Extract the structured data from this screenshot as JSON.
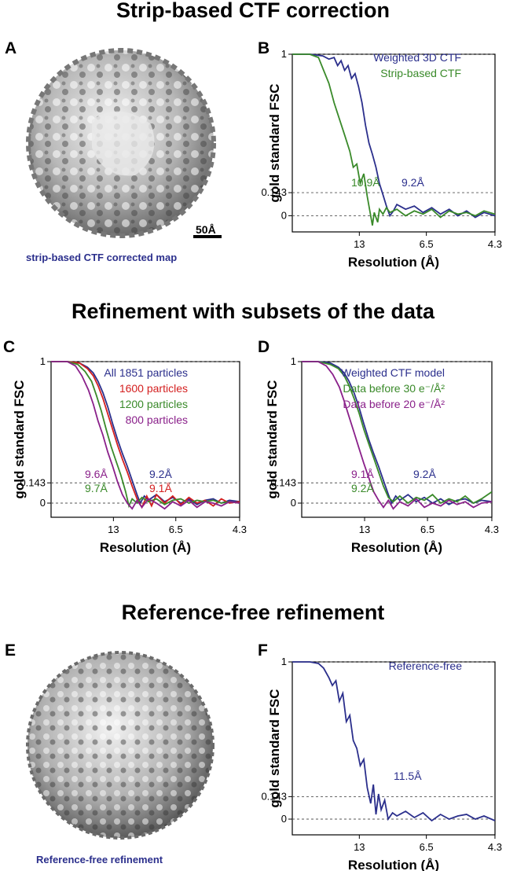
{
  "titles": {
    "t1": "Strip-based CTF correction",
    "t2": "Refinement with subsets of the data",
    "t3": "Reference-free refinement"
  },
  "panels": {
    "A": {
      "letter": "A",
      "caption": "strip-based CTF corrected map",
      "scalebar": "50Å"
    },
    "B": {
      "letter": "B"
    },
    "C": {
      "letter": "C"
    },
    "D": {
      "letter": "D"
    },
    "E": {
      "letter": "E",
      "caption": "Reference-free refinement"
    },
    "F": {
      "letter": "F"
    }
  },
  "colors": {
    "blue": "#2b2f8c",
    "green": "#3a8a2a",
    "red": "#d42020",
    "purple": "#8a208a",
    "caption_blue": "#2b2f8c"
  },
  "chart_data": [
    {
      "id": "B",
      "type": "line",
      "xlabel": "Resolution (Å)",
      "ylabel": "gold standard FSC",
      "xticks": [
        "13",
        "6.5",
        "4.3"
      ],
      "yticks": [
        "1",
        "0.143",
        "0"
      ],
      "ylim": [
        -0.1,
        1.0
      ],
      "xlim_spatial_freq": [
        0,
        0.2326
      ],
      "series": [
        {
          "name": "Weighted 3D CTF",
          "color": "blue",
          "x": [
            0.0,
            0.02,
            0.035,
            0.042,
            0.048,
            0.052,
            0.056,
            0.06,
            0.064,
            0.068,
            0.072,
            0.076,
            0.08,
            0.084,
            0.088,
            0.092,
            0.096,
            0.1,
            0.104,
            0.108,
            0.112,
            0.116,
            0.12,
            0.13,
            0.14,
            0.15,
            0.16,
            0.17,
            0.18,
            0.19,
            0.2,
            0.21,
            0.22,
            0.2326
          ],
          "y": [
            1.0,
            1.0,
            0.99,
            0.97,
            0.98,
            0.93,
            0.96,
            0.9,
            0.93,
            0.85,
            0.88,
            0.8,
            0.7,
            0.56,
            0.45,
            0.38,
            0.3,
            0.2,
            0.13,
            0.06,
            0.0,
            0.03,
            0.07,
            0.04,
            0.06,
            0.02,
            0.05,
            0.01,
            0.04,
            0.0,
            0.03,
            -0.01,
            0.02,
            0.0
          ]
        },
        {
          "name": "Strip-based CTF",
          "color": "green",
          "x": [
            0.0,
            0.02,
            0.03,
            0.036,
            0.042,
            0.048,
            0.054,
            0.06,
            0.066,
            0.07,
            0.074,
            0.078,
            0.082,
            0.086,
            0.09,
            0.092,
            0.094,
            0.098,
            0.1,
            0.104,
            0.108,
            0.112,
            0.12,
            0.13,
            0.14,
            0.15,
            0.16,
            0.17,
            0.18,
            0.19,
            0.2,
            0.21,
            0.22,
            0.2326
          ],
          "y": [
            1.0,
            1.0,
            0.98,
            0.9,
            0.82,
            0.7,
            0.6,
            0.5,
            0.4,
            0.3,
            0.32,
            0.2,
            0.26,
            0.12,
            0.0,
            -0.06,
            0.02,
            -0.04,
            0.04,
            0.01,
            0.05,
            0.02,
            0.04,
            0.0,
            0.03,
            0.01,
            0.04,
            -0.01,
            0.03,
            0.01,
            0.02,
            0.0,
            0.03,
            0.01
          ]
        }
      ],
      "annotations": [
        {
          "text": "10.9Å",
          "color": "green"
        },
        {
          "text": "9.2Å",
          "color": "blue"
        }
      ],
      "legend": "top-right"
    },
    {
      "id": "C",
      "type": "line",
      "xlabel": "Resolution (Å)",
      "ylabel": "gold standard FSC",
      "xticks": [
        "13",
        "6.5",
        "4.3"
      ],
      "yticks": [
        "1",
        "0.143",
        "0"
      ],
      "ylim": [
        -0.1,
        1.0
      ],
      "xlim_spatial_freq": [
        0,
        0.2326
      ],
      "series": [
        {
          "name": "All 1851 particles",
          "color": "blue",
          "x": [
            0.0,
            0.02,
            0.035,
            0.045,
            0.052,
            0.058,
            0.064,
            0.07,
            0.076,
            0.082,
            0.088,
            0.094,
            0.1,
            0.106,
            0.11,
            0.115,
            0.12,
            0.13,
            0.14,
            0.15,
            0.16,
            0.17,
            0.18,
            0.19,
            0.2,
            0.21,
            0.22,
            0.2326
          ],
          "y": [
            1.0,
            1.0,
            0.99,
            0.96,
            0.92,
            0.86,
            0.78,
            0.68,
            0.56,
            0.45,
            0.35,
            0.26,
            0.16,
            0.06,
            0.0,
            0.05,
            0.02,
            0.06,
            0.01,
            0.04,
            0.0,
            0.03,
            -0.01,
            0.02,
            0.03,
            0.0,
            0.02,
            0.01
          ]
        },
        {
          "name": "1600 particles",
          "color": "red",
          "x": [
            0.0,
            0.02,
            0.035,
            0.045,
            0.052,
            0.058,
            0.064,
            0.07,
            0.076,
            0.082,
            0.088,
            0.094,
            0.1,
            0.106,
            0.112,
            0.118,
            0.124,
            0.13,
            0.14,
            0.15,
            0.16,
            0.17,
            0.18,
            0.19,
            0.2,
            0.21,
            0.22,
            0.2326
          ],
          "y": [
            1.0,
            1.0,
            0.99,
            0.95,
            0.9,
            0.83,
            0.74,
            0.63,
            0.52,
            0.41,
            0.31,
            0.22,
            0.12,
            0.03,
            -0.03,
            0.05,
            -0.02,
            0.06,
            0.0,
            0.05,
            -0.01,
            0.04,
            0.0,
            0.02,
            -0.02,
            0.03,
            0.0,
            0.01
          ]
        },
        {
          "name": "1200 particles",
          "color": "green",
          "x": [
            0.0,
            0.02,
            0.033,
            0.042,
            0.05,
            0.056,
            0.062,
            0.068,
            0.074,
            0.08,
            0.086,
            0.092,
            0.096,
            0.1,
            0.106,
            0.112,
            0.12,
            0.13,
            0.14,
            0.15,
            0.16,
            0.17,
            0.18,
            0.19,
            0.2,
            0.21,
            0.22,
            0.2326
          ],
          "y": [
            1.0,
            1.0,
            0.98,
            0.93,
            0.86,
            0.76,
            0.65,
            0.52,
            0.4,
            0.3,
            0.2,
            0.08,
            -0.02,
            0.03,
            0.0,
            0.04,
            0.01,
            0.03,
            -0.01,
            0.02,
            0.03,
            0.0,
            0.02,
            0.01,
            0.02,
            0.0,
            0.01,
            0.0
          ]
        },
        {
          "name": "800 particles",
          "color": "purple",
          "x": [
            0.0,
            0.02,
            0.03,
            0.038,
            0.046,
            0.052,
            0.058,
            0.064,
            0.07,
            0.076,
            0.082,
            0.088,
            0.094,
            0.1,
            0.106,
            0.112,
            0.12,
            0.13,
            0.14,
            0.15,
            0.16,
            0.17,
            0.18,
            0.19,
            0.2,
            0.21,
            0.22,
            0.2326
          ],
          "y": [
            1.0,
            1.0,
            0.97,
            0.9,
            0.8,
            0.7,
            0.58,
            0.48,
            0.36,
            0.26,
            0.15,
            0.06,
            0.0,
            -0.04,
            0.02,
            -0.03,
            0.03,
            0.0,
            -0.04,
            0.01,
            -0.02,
            0.02,
            -0.03,
            0.01,
            0.0,
            -0.02,
            0.01,
            0.0
          ]
        }
      ],
      "annotations": [
        {
          "text": "9.6Å",
          "color": "purple"
        },
        {
          "text": "9.7Å",
          "color": "green"
        },
        {
          "text": "9.2Å",
          "color": "blue"
        },
        {
          "text": "9.1Å",
          "color": "red"
        }
      ],
      "legend": "top-right"
    },
    {
      "id": "D",
      "type": "line",
      "xlabel": "Resolution (Å)",
      "ylabel": "gold standard FSC",
      "xticks": [
        "13",
        "6.5",
        "4.3"
      ],
      "yticks": [
        "1",
        "0.143",
        "0"
      ],
      "ylim": [
        -0.1,
        1.0
      ],
      "xlim_spatial_freq": [
        0,
        0.2326
      ],
      "series": [
        {
          "name": "Weighted CTF model",
          "color": "blue",
          "x": [
            0.0,
            0.02,
            0.035,
            0.045,
            0.052,
            0.058,
            0.064,
            0.07,
            0.076,
            0.082,
            0.088,
            0.094,
            0.1,
            0.106,
            0.11,
            0.115,
            0.12,
            0.13,
            0.14,
            0.15,
            0.16,
            0.17,
            0.18,
            0.19,
            0.2,
            0.21,
            0.22,
            0.2326
          ],
          "y": [
            1.0,
            1.0,
            0.99,
            0.96,
            0.92,
            0.86,
            0.78,
            0.68,
            0.56,
            0.45,
            0.35,
            0.26,
            0.16,
            0.06,
            0.0,
            0.05,
            0.02,
            0.06,
            0.01,
            0.04,
            0.0,
            0.03,
            -0.01,
            0.02,
            0.03,
            0.0,
            0.02,
            0.01
          ]
        },
        {
          "name": "Data before 30 e⁻/Å²",
          "color": "green",
          "x": [
            0.0,
            0.02,
            0.035,
            0.045,
            0.052,
            0.058,
            0.064,
            0.07,
            0.076,
            0.082,
            0.088,
            0.094,
            0.1,
            0.106,
            0.112,
            0.12,
            0.13,
            0.14,
            0.15,
            0.16,
            0.17,
            0.18,
            0.19,
            0.2,
            0.21,
            0.22,
            0.2326
          ],
          "y": [
            1.0,
            1.0,
            0.98,
            0.95,
            0.9,
            0.83,
            0.74,
            0.64,
            0.52,
            0.42,
            0.32,
            0.22,
            0.12,
            0.04,
            0.01,
            0.05,
            0.0,
            0.04,
            0.02,
            0.06,
            0.0,
            0.03,
            0.01,
            0.05,
            0.0,
            0.03,
            0.08
          ]
        },
        {
          "name": "Data before 20 e⁻/Å²",
          "color": "purple",
          "x": [
            0.0,
            0.02,
            0.03,
            0.038,
            0.046,
            0.052,
            0.058,
            0.064,
            0.07,
            0.076,
            0.082,
            0.088,
            0.094,
            0.1,
            0.106,
            0.112,
            0.12,
            0.13,
            0.14,
            0.15,
            0.16,
            0.17,
            0.18,
            0.19,
            0.2,
            0.21,
            0.22,
            0.2326
          ],
          "y": [
            1.0,
            1.0,
            0.97,
            0.91,
            0.82,
            0.72,
            0.61,
            0.5,
            0.39,
            0.28,
            0.18,
            0.08,
            0.02,
            -0.03,
            0.02,
            -0.04,
            0.01,
            -0.02,
            0.03,
            -0.03,
            0.0,
            -0.02,
            0.02,
            -0.01,
            0.01,
            -0.03,
            0.0,
            0.01
          ]
        }
      ],
      "annotations": [
        {
          "text": "9.1Å",
          "color": "purple"
        },
        {
          "text": "9.2Å",
          "color": "green"
        },
        {
          "text": "9.2Å",
          "color": "blue"
        }
      ],
      "legend": "top-right"
    },
    {
      "id": "F",
      "type": "line",
      "xlabel": "Resolution (Å)",
      "ylabel": "gold standard FSC",
      "xticks": [
        "13",
        "6.5",
        "4.3"
      ],
      "yticks": [
        "1",
        "0.143",
        "0"
      ],
      "ylim": [
        -0.1,
        1.0
      ],
      "xlim_spatial_freq": [
        0,
        0.2326
      ],
      "series": [
        {
          "name": "Reference-free",
          "color": "blue",
          "x": [
            0.0,
            0.02,
            0.03,
            0.036,
            0.042,
            0.046,
            0.05,
            0.054,
            0.058,
            0.062,
            0.066,
            0.07,
            0.074,
            0.078,
            0.082,
            0.086,
            0.09,
            0.093,
            0.096,
            0.099,
            0.102,
            0.106,
            0.11,
            0.115,
            0.12,
            0.13,
            0.14,
            0.15,
            0.16,
            0.17,
            0.18,
            0.19,
            0.2,
            0.21,
            0.22,
            0.2326
          ],
          "y": [
            1.0,
            1.0,
            0.99,
            0.96,
            0.9,
            0.85,
            0.88,
            0.75,
            0.8,
            0.62,
            0.66,
            0.5,
            0.45,
            0.34,
            0.38,
            0.2,
            0.1,
            0.22,
            0.03,
            0.16,
            0.06,
            0.12,
            0.0,
            0.04,
            0.02,
            0.05,
            0.01,
            0.04,
            -0.01,
            0.03,
            0.0,
            0.02,
            0.03,
            0.0,
            0.02,
            -0.01
          ]
        }
      ],
      "annotations": [
        {
          "text": "11.5Å",
          "color": "blue"
        }
      ],
      "legend": "top-right"
    }
  ]
}
